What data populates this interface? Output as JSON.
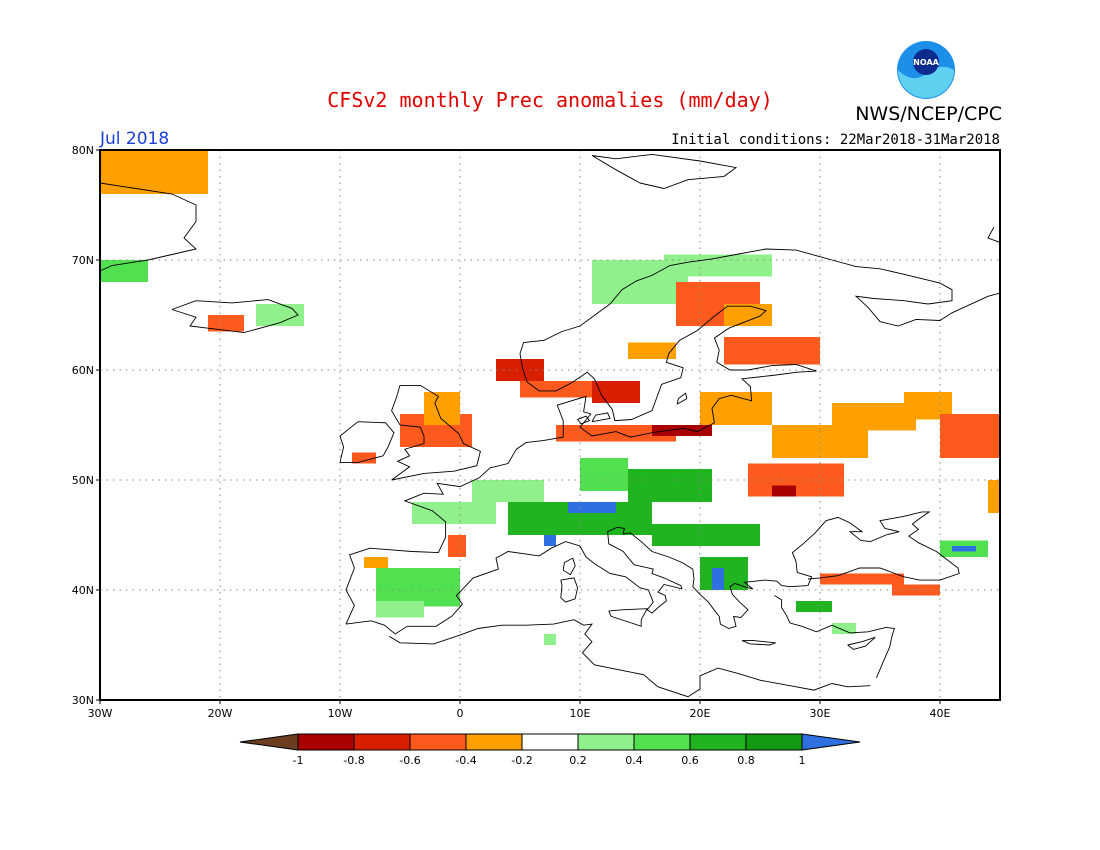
{
  "title": "CFSv2 monthly Prec anomalies (mm/day)",
  "organization": "NWS/NCEP/CPC",
  "logo_text": "NOAA",
  "month_label": "Jul 2018",
  "initial_conditions": "Initial conditions: 22Mar2018-31Mar2018",
  "colors": {
    "title": "#e00000",
    "month": "#1a3fd8",
    "frame": "#000000",
    "grid": "#888888"
  },
  "map": {
    "lon_range": [
      -30,
      45
    ],
    "lat_range": [
      30,
      80
    ],
    "lon_ticks": [
      {
        "value": -30,
        "label": "30W"
      },
      {
        "value": -20,
        "label": "20W"
      },
      {
        "value": -10,
        "label": "10W"
      },
      {
        "value": 0,
        "label": "0"
      },
      {
        "value": 10,
        "label": "10E"
      },
      {
        "value": 20,
        "label": "20E"
      },
      {
        "value": 30,
        "label": "30E"
      },
      {
        "value": 40,
        "label": "40E"
      }
    ],
    "lat_ticks": [
      {
        "value": 30,
        "label": "30N"
      },
      {
        "value": 40,
        "label": "40N"
      },
      {
        "value": 50,
        "label": "50N"
      },
      {
        "value": 60,
        "label": "60N"
      },
      {
        "value": 70,
        "label": "70N"
      },
      {
        "value": 80,
        "label": "80N"
      }
    ],
    "grid": "dotted"
  },
  "colorbar": {
    "labels": [
      "-1",
      "-0.8",
      "-0.6",
      "-0.4",
      "-0.2",
      "0.2",
      "0.4",
      "0.6",
      "0.8",
      "1"
    ],
    "bins": [
      {
        "color": "#6b3d1e"
      },
      {
        "color": "#a80000"
      },
      {
        "color": "#d82000"
      },
      {
        "color": "#ff5a1e"
      },
      {
        "color": "#ffa000"
      },
      {
        "color": "#ffffff"
      },
      {
        "color": "#90f08c"
      },
      {
        "color": "#50e050"
      },
      {
        "color": "#20b420"
      },
      {
        "color": "#129a12"
      },
      {
        "color": "#2f70e0"
      }
    ]
  },
  "chart_data": {
    "type": "heatmap",
    "title": "CFSv2 monthly Prec anomalies (mm/day)",
    "x_range": [
      -30,
      45
    ],
    "y_range": [
      30,
      80
    ],
    "units": "mm/day",
    "regions": [
      {
        "lon": [
          -30,
          -21
        ],
        "lat": [
          76,
          80
        ],
        "value": -0.3
      },
      {
        "lon": [
          -30,
          -26
        ],
        "lat": [
          68,
          70
        ],
        "value": 0.5
      },
      {
        "lon": [
          -21,
          -18
        ],
        "lat": [
          63.5,
          65
        ],
        "value": -0.5
      },
      {
        "lon": [
          -17,
          -13
        ],
        "lat": [
          64,
          66
        ],
        "value": 0.3
      },
      {
        "lon": [
          11,
          19
        ],
        "lat": [
          66,
          70
        ],
        "value": 0.3
      },
      {
        "lon": [
          17,
          26
        ],
        "lat": [
          68.5,
          70.5
        ],
        "value": 0.3
      },
      {
        "lon": [
          18,
          25
        ],
        "lat": [
          64,
          68
        ],
        "value": -0.5
      },
      {
        "lon": [
          22,
          26
        ],
        "lat": [
          64,
          66
        ],
        "value": -0.3
      },
      {
        "lon": [
          14,
          18
        ],
        "lat": [
          61,
          62.5
        ],
        "value": -0.3
      },
      {
        "lon": [
          22,
          30
        ],
        "lat": [
          60.5,
          63
        ],
        "value": -0.5
      },
      {
        "lon": [
          3,
          7
        ],
        "lat": [
          59,
          61
        ],
        "value": -0.7
      },
      {
        "lon": [
          5,
          12
        ],
        "lat": [
          57.5,
          59
        ],
        "value": -0.5
      },
      {
        "lon": [
          11,
          15
        ],
        "lat": [
          57,
          59
        ],
        "value": -0.7
      },
      {
        "lon": [
          8,
          18
        ],
        "lat": [
          53.5,
          55
        ],
        "value": -0.6
      },
      {
        "lon": [
          16,
          21
        ],
        "lat": [
          54,
          55
        ],
        "value": -0.85
      },
      {
        "lon": [
          20,
          26
        ],
        "lat": [
          55,
          58
        ],
        "value": -0.4
      },
      {
        "lon": [
          -5,
          1
        ],
        "lat": [
          53,
          56
        ],
        "value": -0.5
      },
      {
        "lon": [
          -3,
          0
        ],
        "lat": [
          55,
          58
        ],
        "value": -0.3
      },
      {
        "lon": [
          -9,
          -7
        ],
        "lat": [
          51.5,
          52.5
        ],
        "value": -0.5
      },
      {
        "lon": [
          26,
          34
        ],
        "lat": [
          52,
          55
        ],
        "value": -0.3
      },
      {
        "lon": [
          24,
          32
        ],
        "lat": [
          48.5,
          51.5
        ],
        "value": -0.5
      },
      {
        "lon": [
          26,
          28
        ],
        "lat": [
          48.5,
          49.5
        ],
        "value": -0.85
      },
      {
        "lon": [
          31,
          38
        ],
        "lat": [
          54.5,
          57
        ],
        "value": -0.3
      },
      {
        "lon": [
          37,
          41
        ],
        "lat": [
          55.5,
          58
        ],
        "value": -0.3
      },
      {
        "lon": [
          40,
          45
        ],
        "lat": [
          52,
          56
        ],
        "value": -0.5
      },
      {
        "lon": [
          44,
          45
        ],
        "lat": [
          47,
          50
        ],
        "value": -0.3
      },
      {
        "lon": [
          30,
          37
        ],
        "lat": [
          40.5,
          41.5
        ],
        "value": -0.5
      },
      {
        "lon": [
          36,
          40
        ],
        "lat": [
          39.5,
          40.5
        ],
        "value": -0.5
      },
      {
        "lon": [
          -1,
          0.5
        ],
        "lat": [
          43,
          45
        ],
        "value": -0.5
      },
      {
        "lon": [
          -8,
          -6
        ],
        "lat": [
          42,
          43
        ],
        "value": -0.3
      },
      {
        "lon": [
          -7,
          0
        ],
        "lat": [
          38.5,
          42
        ],
        "value": 0.5
      },
      {
        "lon": [
          -7,
          -3
        ],
        "lat": [
          37.5,
          39
        ],
        "value": 0.3
      },
      {
        "lon": [
          4,
          16
        ],
        "lat": [
          45,
          48
        ],
        "value": 0.6
      },
      {
        "lon": [
          9,
          13
        ],
        "lat": [
          47,
          48
        ],
        "value": 1.0
      },
      {
        "lon": [
          7,
          8
        ],
        "lat": [
          44,
          45
        ],
        "value": 1.0
      },
      {
        "lon": [
          10,
          14
        ],
        "lat": [
          49,
          52
        ],
        "value": 0.4
      },
      {
        "lon": [
          14,
          21
        ],
        "lat": [
          48,
          51
        ],
        "value": 0.6
      },
      {
        "lon": [
          16,
          25
        ],
        "lat": [
          44,
          46
        ],
        "value": 0.6
      },
      {
        "lon": [
          20,
          24
        ],
        "lat": [
          40,
          43
        ],
        "value": 0.7
      },
      {
        "lon": [
          21,
          22
        ],
        "lat": [
          40,
          42
        ],
        "value": 1.0
      },
      {
        "lon": [
          28,
          31
        ],
        "lat": [
          38,
          39
        ],
        "value": 0.6
      },
      {
        "lon": [
          40,
          44
        ],
        "lat": [
          43,
          44.5
        ],
        "value": 0.5
      },
      {
        "lon": [
          41,
          43
        ],
        "lat": [
          43.5,
          44
        ],
        "value": 1.0
      },
      {
        "lon": [
          7,
          8
        ],
        "lat": [
          35,
          36
        ],
        "value": 0.3
      },
      {
        "lon": [
          -4,
          3
        ],
        "lat": [
          46,
          48
        ],
        "value": 0.3
      },
      {
        "lon": [
          1,
          7
        ],
        "lat": [
          48,
          50
        ],
        "value": 0.3
      },
      {
        "lon": [
          31,
          33
        ],
        "lat": [
          36,
          37
        ],
        "value": 0.3
      }
    ]
  }
}
